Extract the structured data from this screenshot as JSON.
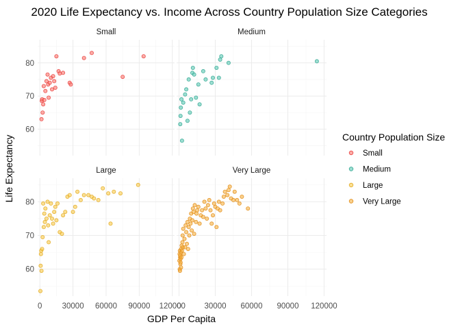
{
  "chart_data": {
    "type": "scatter",
    "title": "2020 Life Expectancy vs. Income Across Country Population Size Categories",
    "xlabel": "GDP Per Capita",
    "ylabel": "Life Expectancy",
    "legend_title": "Country Population Size",
    "legend_position": "right",
    "grid": true,
    "facet_layout": "2x2",
    "xlim": [
      -2000,
      122000
    ],
    "ylim": [
      52,
      87
    ],
    "x_ticks": [
      0,
      30000,
      60000,
      90000,
      120000
    ],
    "x_tick_labels": [
      "0",
      "30000",
      "60000",
      "90000",
      "120000"
    ],
    "y_ticks": [
      60,
      70,
      80
    ],
    "y_tick_labels": [
      "60",
      "70",
      "80"
    ],
    "panels": [
      {
        "name": "Small",
        "color": "#F8766D",
        "stroke": "#E83A3A",
        "points": [
          [
            1500,
            63.0
          ],
          [
            1800,
            68.5
          ],
          [
            2000,
            69.0
          ],
          [
            2500,
            65.0
          ],
          [
            3000,
            67.5
          ],
          [
            3500,
            73.0
          ],
          [
            4000,
            68.8
          ],
          [
            5000,
            71.5
          ],
          [
            6000,
            74.5
          ],
          [
            7000,
            76.5
          ],
          [
            7500,
            73.5
          ],
          [
            8000,
            69.5
          ],
          [
            9000,
            74.0
          ],
          [
            10000,
            75.5
          ],
          [
            11000,
            72.0
          ],
          [
            12000,
            76.0
          ],
          [
            13000,
            74.5
          ],
          [
            14000,
            72.5
          ],
          [
            15000,
            82.0
          ],
          [
            17000,
            77.5
          ],
          [
            18000,
            76.8
          ],
          [
            21000,
            77.0
          ],
          [
            27000,
            74.0
          ],
          [
            28000,
            73.5
          ],
          [
            40000,
            81.5
          ],
          [
            47000,
            83.0
          ],
          [
            75000,
            75.8
          ],
          [
            94000,
            82.0
          ]
        ]
      },
      {
        "name": "Medium",
        "color": "#5CC8B4",
        "stroke": "#2FA58F",
        "points": [
          [
            1000,
            61.5
          ],
          [
            1200,
            64.0
          ],
          [
            1500,
            66.5
          ],
          [
            2000,
            69.0
          ],
          [
            2500,
            56.5
          ],
          [
            3500,
            68.0
          ],
          [
            5000,
            70.5
          ],
          [
            6000,
            72.0
          ],
          [
            7000,
            62.5
          ],
          [
            8000,
            75.0
          ],
          [
            9000,
            65.0
          ],
          [
            10000,
            69.0
          ],
          [
            11000,
            77.0
          ],
          [
            11500,
            78.5
          ],
          [
            12500,
            76.5
          ],
          [
            14000,
            69.5
          ],
          [
            16000,
            73.5
          ],
          [
            17000,
            67.5
          ],
          [
            20000,
            77.5
          ],
          [
            22000,
            75.0
          ],
          [
            27000,
            74.0
          ],
          [
            28000,
            75.5
          ],
          [
            31000,
            78.5
          ],
          [
            33000,
            75.5
          ],
          [
            34000,
            81.0
          ],
          [
            35000,
            82.0
          ],
          [
            41000,
            80.0
          ],
          [
            114000,
            80.5
          ]
        ]
      },
      {
        "name": "Large",
        "color": "#F8C94A",
        "stroke": "#E0A820",
        "points": [
          [
            500,
            53.5
          ],
          [
            700,
            61.0
          ],
          [
            1000,
            64.5
          ],
          [
            1200,
            65.5
          ],
          [
            1500,
            59.5
          ],
          [
            2000,
            66.0
          ],
          [
            2500,
            69.5
          ],
          [
            3000,
            79.5
          ],
          [
            3500,
            72.5
          ],
          [
            4000,
            76.5
          ],
          [
            4500,
            74.0
          ],
          [
            5000,
            78.0
          ],
          [
            6000,
            75.0
          ],
          [
            7000,
            80.0
          ],
          [
            7500,
            73.0
          ],
          [
            8000,
            68.0
          ],
          [
            9000,
            76.0
          ],
          [
            10000,
            79.5
          ],
          [
            11000,
            75.0
          ],
          [
            12000,
            73.5
          ],
          [
            13000,
            77.0
          ],
          [
            14000,
            78.5
          ],
          [
            15000,
            74.5
          ],
          [
            16000,
            79.5
          ],
          [
            18000,
            71.0
          ],
          [
            20000,
            70.5
          ],
          [
            21000,
            76.0
          ],
          [
            23000,
            77.0
          ],
          [
            25000,
            81.5
          ],
          [
            27000,
            82.0
          ],
          [
            30000,
            77.0
          ],
          [
            32000,
            78.5
          ],
          [
            34000,
            83.0
          ],
          [
            37000,
            80.5
          ],
          [
            40000,
            82.0
          ],
          [
            44000,
            82.0
          ],
          [
            47000,
            81.5
          ],
          [
            49000,
            81.0
          ],
          [
            53000,
            80.5
          ],
          [
            57000,
            84.0
          ],
          [
            62000,
            82.5
          ],
          [
            64000,
            73.5
          ],
          [
            67000,
            83.0
          ],
          [
            73000,
            82.5
          ],
          [
            89000,
            85.0
          ]
        ]
      },
      {
        "name": "Very Large",
        "color": "#F5B041",
        "stroke": "#E08A14",
        "points": [
          [
            300,
            62.5
          ],
          [
            500,
            64.5
          ],
          [
            600,
            60.0
          ],
          [
            700,
            65.5
          ],
          [
            800,
            59.5
          ],
          [
            900,
            63.5
          ],
          [
            1000,
            64.0
          ],
          [
            1100,
            61.5
          ],
          [
            1200,
            63.0
          ],
          [
            1300,
            62.0
          ],
          [
            1500,
            65.0
          ],
          [
            1600,
            60.5
          ],
          [
            1800,
            66.0
          ],
          [
            2000,
            63.5
          ],
          [
            2200,
            67.0
          ],
          [
            2500,
            65.5
          ],
          [
            2800,
            68.0
          ],
          [
            3000,
            70.0
          ],
          [
            3200,
            66.5
          ],
          [
            3500,
            72.0
          ],
          [
            4000,
            64.5
          ],
          [
            4500,
            69.0
          ],
          [
            5000,
            66.5
          ],
          [
            5500,
            73.0
          ],
          [
            6000,
            71.0
          ],
          [
            6500,
            67.5
          ],
          [
            7000,
            74.0
          ],
          [
            7500,
            66.0
          ],
          [
            8000,
            72.5
          ],
          [
            8500,
            70.0
          ],
          [
            9000,
            75.0
          ],
          [
            9500,
            73.5
          ],
          [
            10000,
            76.5
          ],
          [
            10500,
            71.5
          ],
          [
            11000,
            74.5
          ],
          [
            11500,
            78.0
          ],
          [
            12000,
            77.0
          ],
          [
            12500,
            70.5
          ],
          [
            13000,
            79.0
          ],
          [
            14000,
            74.0
          ],
          [
            14500,
            76.5
          ],
          [
            15000,
            77.5
          ],
          [
            16000,
            78.5
          ],
          [
            17000,
            73.5
          ],
          [
            18000,
            76.0
          ],
          [
            19000,
            77.5
          ],
          [
            20000,
            75.5
          ],
          [
            21000,
            80.0
          ],
          [
            22000,
            78.0
          ],
          [
            23000,
            75.0
          ],
          [
            24000,
            79.0
          ],
          [
            25000,
            80.5
          ],
          [
            26000,
            77.5
          ],
          [
            27000,
            73.5
          ],
          [
            28000,
            76.0
          ],
          [
            29000,
            79.5
          ],
          [
            30000,
            78.5
          ],
          [
            31000,
            72.5
          ],
          [
            32000,
            78.0
          ],
          [
            33000,
            80.0
          ],
          [
            34000,
            77.5
          ],
          [
            36000,
            79.5
          ],
          [
            37000,
            81.5
          ],
          [
            38000,
            83.0
          ],
          [
            40000,
            82.0
          ],
          [
            41000,
            83.5
          ],
          [
            42000,
            84.5
          ],
          [
            43000,
            81.0
          ],
          [
            45000,
            80.5
          ],
          [
            46000,
            83.0
          ],
          [
            48000,
            80.5
          ],
          [
            50000,
            79.5
          ],
          [
            52000,
            81.5
          ],
          [
            57000,
            78.0
          ]
        ]
      }
    ]
  }
}
